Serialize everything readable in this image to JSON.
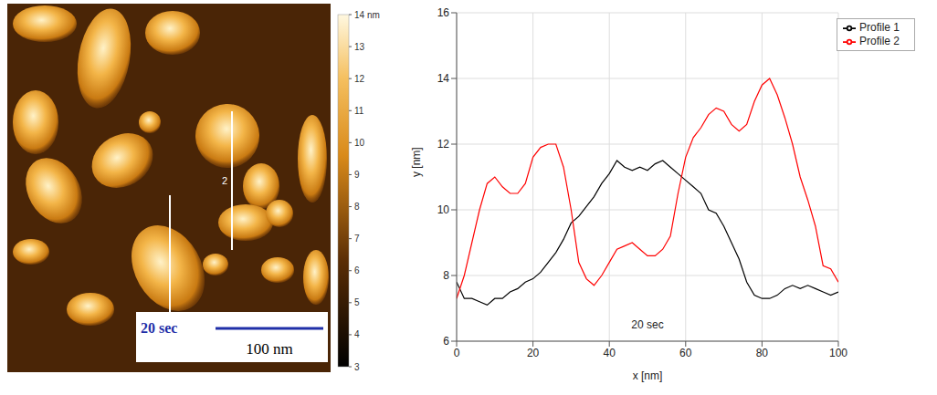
{
  "image": {
    "colorbar": {
      "range": [
        3,
        14
      ],
      "ticks": [
        3,
        4,
        5,
        6,
        7,
        8,
        9,
        10,
        11,
        12,
        13,
        {
          "value": 14,
          "label": "14 nm"
        }
      ]
    },
    "scale_bar": {
      "time": "20 sec",
      "length": "100 nm"
    },
    "profile_label": "2"
  },
  "chart_data": {
    "type": "line",
    "xlabel": "x [nm]",
    "ylabel": "y [nm]",
    "xlim": [
      0,
      100
    ],
    "xticks": [
      0,
      20,
      40,
      60,
      80,
      100
    ],
    "ylim": [
      6,
      16
    ],
    "yticks": [
      6,
      8,
      10,
      12,
      14,
      16
    ],
    "grid": true,
    "legend": "upper right",
    "annotations": [
      {
        "text": "20 sec",
        "x": 50,
        "y": 6.5
      }
    ],
    "x": [
      0,
      2,
      4,
      6,
      8,
      10,
      12,
      14,
      16,
      18,
      20,
      22,
      24,
      26,
      28,
      30,
      32,
      34,
      36,
      38,
      40,
      42,
      44,
      46,
      48,
      50,
      52,
      54,
      56,
      58,
      60,
      62,
      64,
      66,
      68,
      70,
      72,
      74,
      76,
      78,
      80,
      82,
      84,
      86,
      88,
      90,
      92,
      94,
      96,
      98,
      100
    ],
    "series": [
      {
        "name": "Profile 1",
        "color": "#000000",
        "values": [
          7.8,
          7.3,
          7.3,
          7.2,
          7.1,
          7.3,
          7.3,
          7.5,
          7.6,
          7.8,
          7.9,
          8.1,
          8.4,
          8.7,
          9.1,
          9.6,
          9.8,
          10.1,
          10.4,
          10.8,
          11.1,
          11.5,
          11.3,
          11.2,
          11.3,
          11.2,
          11.4,
          11.5,
          11.3,
          11.1,
          10.9,
          10.7,
          10.5,
          10.0,
          9.9,
          9.5,
          9.0,
          8.5,
          7.8,
          7.4,
          7.3,
          7.3,
          7.4,
          7.6,
          7.7,
          7.6,
          7.7,
          7.6,
          7.5,
          7.4,
          7.5
        ]
      },
      {
        "name": "Profile 2",
        "color": "#ff0000",
        "values": [
          7.3,
          8.0,
          9.0,
          10.0,
          10.8,
          11.0,
          10.7,
          10.5,
          10.5,
          10.8,
          11.6,
          11.9,
          12.0,
          12.0,
          11.3,
          10.0,
          8.4,
          7.9,
          7.7,
          8.0,
          8.4,
          8.8,
          8.9,
          9.0,
          8.8,
          8.6,
          8.6,
          8.8,
          9.2,
          10.5,
          11.6,
          12.2,
          12.5,
          12.9,
          13.1,
          13.0,
          12.6,
          12.4,
          12.6,
          13.3,
          13.8,
          14.0,
          13.5,
          12.8,
          12.0,
          11.0,
          10.3,
          9.5,
          8.3,
          8.2,
          7.8
        ]
      }
    ]
  }
}
